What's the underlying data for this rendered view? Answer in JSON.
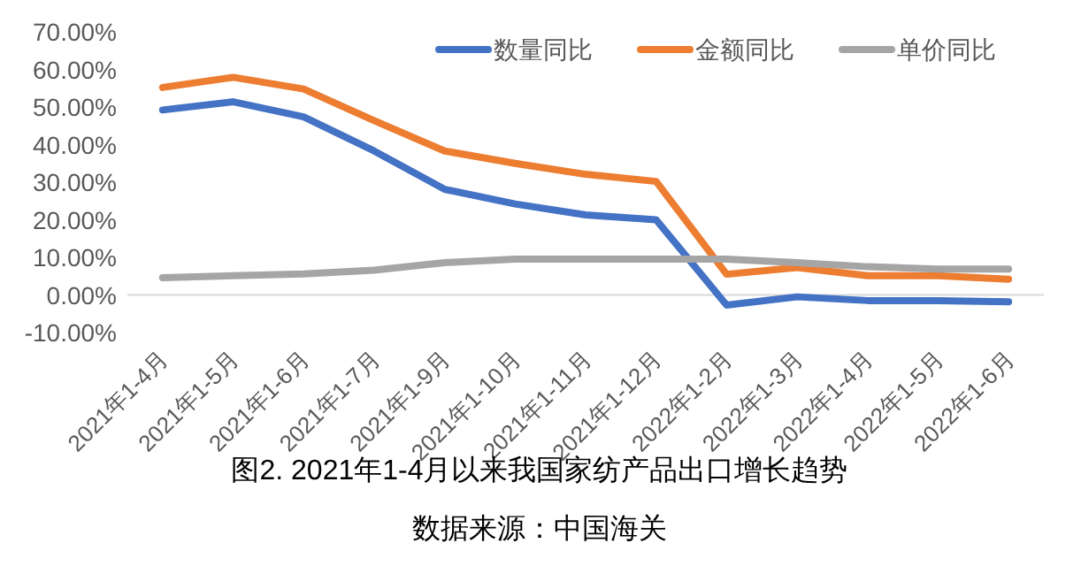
{
  "chart_data": {
    "type": "line",
    "title": "图2. 2021年1-4月以来我国家纺产品出口增长趋势",
    "annotations": [
      "数据来源：中国海关"
    ],
    "categories": [
      "2021年1-4月",
      "2021年1-5月",
      "2021年1-6月",
      "2021年1-7月",
      "2021年1-9月",
      "2021年1-10月",
      "2021年1-11月",
      "2021年1-12月",
      "2022年1-2月",
      "2022年1-3月",
      "2022年1-4月",
      "2022年1-5月",
      "2022年1-6月"
    ],
    "series": [
      {
        "name": "数量同比",
        "color": "#4472c4",
        "values": [
          49.2,
          51.4,
          47.4,
          38.3,
          28.1,
          24.2,
          21.3,
          20.0,
          -2.7,
          -0.5,
          -1.5,
          -1.5,
          -1.8
        ]
      },
      {
        "name": "金额同比",
        "color": "#ed7d31",
        "values": [
          55.2,
          57.9,
          54.8,
          46.4,
          38.3,
          35.0,
          32.1,
          30.2,
          5.5,
          7.3,
          5.1,
          5.1,
          4.2
        ]
      },
      {
        "name": "单价同比",
        "color": "#a5a5a5",
        "values": [
          4.6,
          5.1,
          5.6,
          6.6,
          8.6,
          9.5,
          9.5,
          9.5,
          9.5,
          8.6,
          7.5,
          6.9,
          6.9
        ]
      }
    ],
    "ylim": [
      -10,
      70
    ],
    "yticks": [
      {
        "value": -10,
        "label": "-10.00%"
      },
      {
        "value": 0,
        "label": "0.00%"
      },
      {
        "value": 10,
        "label": "10.00%"
      },
      {
        "value": 20,
        "label": "20.00%"
      },
      {
        "value": 30,
        "label": "30.00%"
      },
      {
        "value": 40,
        "label": "40.00%"
      },
      {
        "value": 50,
        "label": "50.00%"
      },
      {
        "value": 60,
        "label": "60.00%"
      },
      {
        "value": 70,
        "label": "70.00%"
      }
    ],
    "legend": "top right"
  }
}
